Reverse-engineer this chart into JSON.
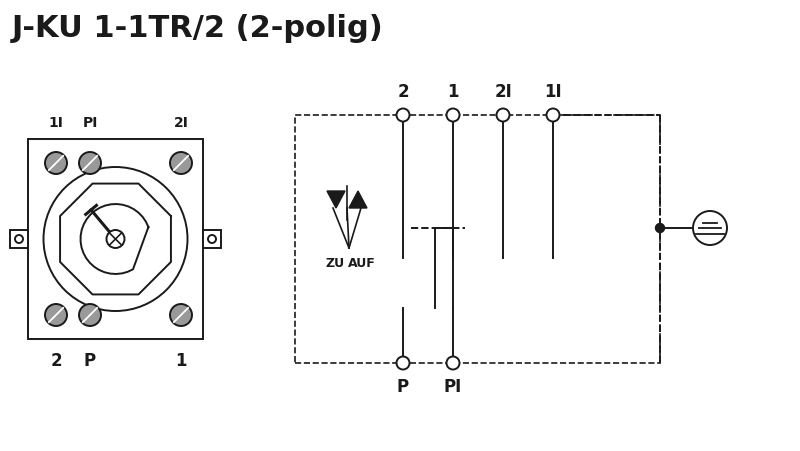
{
  "title": "J-KU 1-1TR/2 (2-polig)",
  "bg_color": "#ffffff",
  "line_color": "#1a1a1a",
  "title_fontsize": 22,
  "label_fontsize": 10,
  "top_labels_left": [
    "1I",
    "PI",
    "2I"
  ],
  "bottom_labels_left": [
    "2",
    "P",
    "1"
  ],
  "top_labels_right": [
    "2",
    "1",
    "2I",
    "1I"
  ],
  "bottom_labels_right": [
    "P",
    "PI"
  ]
}
